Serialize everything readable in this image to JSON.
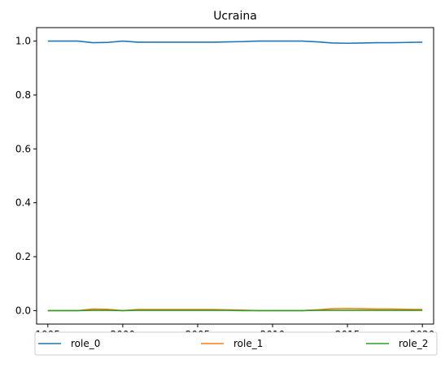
{
  "chart_data": {
    "type": "line",
    "title": "Ucraina",
    "xlabel": "",
    "ylabel": "",
    "xlim": [
      1994.25,
      2020.75
    ],
    "ylim": [
      -0.05,
      1.05
    ],
    "xticks": [
      "1995",
      "2000",
      "2005",
      "2010",
      "2015",
      "2020"
    ],
    "yticks": [
      "0.0",
      "0.2",
      "0.4",
      "0.6",
      "0.8",
      "1.0"
    ],
    "grid": false,
    "legend": "bottom",
    "x": [
      1995,
      1996,
      1997,
      1998,
      1999,
      2000,
      2001,
      2002,
      2003,
      2004,
      2005,
      2006,
      2007,
      2008,
      2009,
      2010,
      2011,
      2012,
      2013,
      2014,
      2015,
      2016,
      2017,
      2018,
      2019,
      2020
    ],
    "series": [
      {
        "name": "role_0",
        "color": "#1f77b4",
        "values": [
          1.0,
          1.0,
          1.0,
          0.994,
          0.995,
          1.0,
          0.996,
          0.996,
          0.996,
          0.996,
          0.996,
          0.996,
          0.997,
          0.998,
          1.0,
          1.0,
          1.0,
          1.0,
          0.997,
          0.993,
          0.992,
          0.993,
          0.994,
          0.994,
          0.995,
          0.996
        ]
      },
      {
        "name": "role_1",
        "color": "#ff7f0e",
        "values": [
          0.0,
          0.0,
          0.0,
          0.006,
          0.005,
          0.0,
          0.004,
          0.004,
          0.004,
          0.004,
          0.004,
          0.004,
          0.003,
          0.002,
          0.0,
          0.0,
          0.0,
          0.0,
          0.003,
          0.007,
          0.008,
          0.007,
          0.006,
          0.006,
          0.005,
          0.004
        ]
      },
      {
        "name": "role_2",
        "color": "#2ca02c",
        "values": [
          0.0,
          0.0,
          0.0,
          0.001,
          0.001,
          0.0,
          0.001,
          0.001,
          0.001,
          0.001,
          0.001,
          0.001,
          0.001,
          0.0,
          0.0,
          0.0,
          0.0,
          0.0,
          0.001,
          0.001,
          0.001,
          0.001,
          0.001,
          0.001,
          0.001,
          0.001
        ]
      }
    ]
  }
}
